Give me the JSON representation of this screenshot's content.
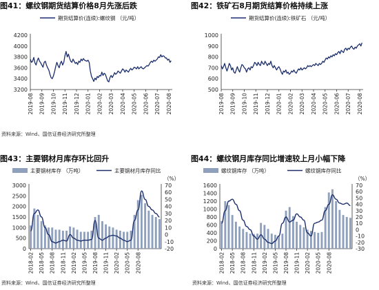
{
  "panels": [
    {
      "title": "图41：螺纹钢期货结算价格8月先涨后跌",
      "source": "资料来源：Wind、国信证券经济研究所整理",
      "chart_data": {
        "type": "line",
        "legend": [
          "期货结算价(连续):螺纹钢 （元/吨）"
        ],
        "legend_position": "top",
        "ylim": [
          3200,
          4200
        ],
        "yticks": [
          "3200",
          "3400",
          "3600",
          "3800",
          "4000",
          "4200"
        ],
        "xticks": [
          "2019-08",
          "2019-09",
          "2019-10",
          "2019-11",
          "2019-12",
          "2020-01",
          "2020-02",
          "2020-03",
          "2020-04",
          "2020-05",
          "2020-06",
          "2020-07",
          "2020-08"
        ],
        "x_range": [
          0,
          12.3
        ],
        "color": "#1b2d6b",
        "series": [
          {
            "x": [
              0,
              0.1,
              0.2,
              0.3,
              0.4,
              0.5,
              0.6,
              0.7,
              0.8,
              0.9,
              1.0,
              1.1,
              1.2,
              1.3,
              1.4,
              1.5,
              1.6,
              1.7,
              1.8,
              1.9,
              2.0,
              2.1,
              2.2,
              2.3,
              2.4,
              2.5,
              2.6,
              2.7,
              2.8,
              2.9,
              3.0,
              3.1,
              3.2,
              3.3,
              3.4,
              3.5,
              3.6,
              3.7,
              3.8,
              3.9,
              4.0,
              4.1,
              4.2,
              4.3,
              4.4,
              4.5,
              4.6,
              4.7,
              4.8,
              4.9,
              5.0,
              5.1,
              5.2,
              5.3,
              5.4,
              5.5,
              5.6,
              5.7,
              5.8,
              5.9,
              6.0,
              6.1,
              6.2,
              6.3,
              6.4,
              6.5,
              6.6,
              6.7,
              6.8,
              6.9,
              7.0,
              7.1,
              7.2,
              7.3,
              7.4,
              7.5,
              7.6,
              7.7,
              7.8,
              7.9,
              8.0,
              8.1,
              8.2,
              8.3,
              8.4,
              8.5,
              8.6,
              8.7,
              8.8,
              8.9,
              9.0,
              9.1,
              9.2,
              9.3,
              9.4,
              9.5,
              9.6,
              9.7,
              9.8,
              9.9,
              10.0,
              10.1,
              10.2,
              10.3,
              10.4,
              10.5,
              10.6,
              10.7,
              10.8,
              10.9,
              11.0,
              11.1,
              11.2,
              11.3,
              11.4,
              11.5,
              11.6,
              11.7,
              11.8,
              11.9,
              12.0,
              12.1,
              12.2
            ],
            "y": [
              3760,
              3700,
              3720,
              3790,
              3690,
              3650,
              3730,
              3780,
              3720,
              3690,
              3650,
              3610,
              3700,
              3720,
              3650,
              3600,
              3560,
              3480,
              3420,
              3400,
              3450,
              3530,
              3620,
              3700,
              3640,
              3600,
              3680,
              3720,
              3650,
              3700,
              3820,
              3900,
              3800,
              3850,
              3780,
              3720,
              3700,
              3760,
              3720,
              3680,
              3700,
              3660,
              3720,
              3700,
              3760,
              3730,
              3770,
              3740,
              3730,
              3720,
              3740,
              3700,
              3540,
              3440,
              3400,
              3350,
              3410,
              3380,
              3440,
              3420,
              3460,
              3450,
              3520,
              3460,
              3500,
              3480,
              3420,
              3360,
              3340,
              3420,
              3460,
              3420,
              3460,
              3510,
              3480,
              3500,
              3540,
              3520,
              3500,
              3540,
              3580,
              3560,
              3520,
              3560,
              3540,
              3520,
              3560,
              3590,
              3560,
              3580,
              3610,
              3600,
              3580,
              3620,
              3580,
              3600,
              3620,
              3590,
              3580,
              3600,
              3620,
              3640,
              3630,
              3660,
              3700,
              3720,
              3700,
              3740,
              3720,
              3740,
              3760,
              3800,
              3790,
              3840,
              3800,
              3820,
              3810,
              3780,
              3780,
              3740,
              3760,
              3700,
              3730
            ]
          }
        ]
      }
    },
    {
      "title": "图42：铁矿石8月期货结算价格持续上涨",
      "source": "",
      "chart_data": {
        "type": "line",
        "legend": [
          "期货结算价(连续):铁矿石 （元/吨）"
        ],
        "legend_position": "top",
        "ylim": [
          500,
          1000
        ],
        "yticks": [
          "500",
          "600",
          "700",
          "800",
          "900",
          "1000"
        ],
        "xticks": [
          "2019-08",
          "2019-09",
          "2019-10",
          "2019-11",
          "2019-12",
          "2020-01",
          "2020-02",
          "2020-03",
          "2020-04",
          "2020-05",
          "2020-06",
          "2020-07",
          "2020-08"
        ],
        "x_range": [
          0,
          12.3
        ],
        "color": "#1b2d6b",
        "series": [
          {
            "x": [
              0,
              0.1,
              0.2,
              0.3,
              0.4,
              0.5,
              0.6,
              0.7,
              0.8,
              0.9,
              1.0,
              1.1,
              1.2,
              1.3,
              1.4,
              1.5,
              1.6,
              1.7,
              1.8,
              1.9,
              2.0,
              2.1,
              2.2,
              2.3,
              2.4,
              2.5,
              2.6,
              2.7,
              2.8,
              2.9,
              3.0,
              3.1,
              3.2,
              3.3,
              3.4,
              3.5,
              3.6,
              3.7,
              3.8,
              3.9,
              4.0,
              4.1,
              4.2,
              4.3,
              4.4,
              4.5,
              4.6,
              4.7,
              4.8,
              4.9,
              5.0,
              5.1,
              5.2,
              5.3,
              5.4,
              5.5,
              5.6,
              5.7,
              5.8,
              5.9,
              6.0,
              6.1,
              6.2,
              6.3,
              6.4,
              6.5,
              6.6,
              6.7,
              6.8,
              6.9,
              7.0,
              7.1,
              7.2,
              7.3,
              7.4,
              7.5,
              7.6,
              7.7,
              7.8,
              7.9,
              8.0,
              8.1,
              8.2,
              8.3,
              8.4,
              8.5,
              8.6,
              8.7,
              8.8,
              8.9,
              9.0,
              9.1,
              9.2,
              9.3,
              9.4,
              9.5,
              9.6,
              9.7,
              9.8,
              9.9,
              10.0,
              10.1,
              10.2,
              10.3,
              10.4,
              10.5,
              10.6,
              10.7,
              10.8,
              10.9,
              11.0,
              11.1,
              11.2,
              11.3,
              11.4,
              11.5,
              11.6,
              11.7,
              11.8,
              11.9,
              12.0,
              12.1,
              12.2
            ],
            "y": [
              720,
              690,
              710,
              740,
              700,
              670,
              700,
              740,
              720,
              680,
              700,
              660,
              650,
              680,
              710,
              680,
              660,
              700,
              730,
              720,
              700,
              690,
              660,
              690,
              700,
              680,
              710,
              700,
              720,
              750,
              740,
              720,
              750,
              730,
              720,
              760,
              740,
              730,
              760,
              740,
              720,
              740,
              730,
              760,
              720,
              700,
              720,
              700,
              680,
              700,
              710,
              690,
              660,
              640,
              670,
              660,
              680,
              650,
              660,
              640,
              650,
              670,
              660,
              680,
              660,
              650,
              670,
              690,
              680,
              700,
              680,
              690,
              700,
              690,
              700,
              720,
              710,
              720,
              710,
              720,
              730,
              720,
              740,
              730,
              720,
              740,
              730,
              740,
              760,
              750,
              770,
              790,
              780,
              800,
              790,
              810,
              800,
              820,
              810,
              830,
              820,
              840,
              850,
              830,
              860,
              850,
              840,
              870,
              880,
              860,
              880,
              870,
              890,
              900,
              880,
              870,
              890,
              880,
              900,
              910,
              920,
              900,
              930
            ]
          }
        ]
      }
    },
    {
      "title": "图43：主要钢材月库存环比回升",
      "source": "资料来源：Wind、国信证券经济研究所整理",
      "chart_data": {
        "type": "bar",
        "legend": [
          "主要钢材库存 （万吨）",
          "主要钢材月库存同比"
        ],
        "legend_position": "top",
        "ylim": [
          0,
          3000
        ],
        "yticks": [
          "0",
          "500",
          "1000",
          "1500",
          "2000",
          "2500",
          "3000"
        ],
        "y2lim": [
          -20,
          70
        ],
        "y2ticks": [
          "-20",
          "-10",
          "0",
          "10",
          "20",
          "30",
          "40",
          "50",
          "60",
          "70"
        ],
        "y2unit": "（%）",
        "xticks": [
          "2018-02",
          "2018-05",
          "2018-08",
          "2018-11",
          "2019-02",
          "2019-05",
          "2019-08",
          "2019-11",
          "2020-02",
          "2020-05",
          "2020-08"
        ],
        "bar_color": "#8fa0bd",
        "line_color": "#1b2d6b",
        "series": [
          {
            "name": "主要钢材库存 （万吨）",
            "values": [
              1100,
              1900,
              1600,
              1300,
              1100,
              1000,
              1000,
              900,
              900,
              850,
              850,
              1050,
              1000,
              900,
              800,
              800,
              800,
              850,
              1500,
              1600,
              1300,
              1150,
              1050,
              1000,
              900,
              850,
              800,
              800,
              850,
              1600,
              2300,
              2550,
              2150,
              1800,
              1600,
              1500,
              1400
            ]
          },
          {
            "name": "主要钢材月库存同比",
            "values": [
              5,
              30,
              35,
              25,
              10,
              0,
              -10,
              -12,
              -10,
              -8,
              -9,
              0,
              -5,
              -8,
              -9,
              -8,
              -8,
              -7,
              20,
              -5,
              -8,
              -5,
              -2,
              -1,
              -2,
              -5,
              -8,
              -10,
              -8,
              20,
              35,
              62,
              50,
              40,
              35,
              30,
              25
            ]
          }
        ]
      }
    },
    {
      "title": "图44：螺纹钢月库存同比增速较上月小幅下降",
      "source": "资料来源：Wind、国信证券经济研究所整理",
      "chart_data": {
        "type": "bar",
        "legend": [
          "螺纹钢库存 （万吨）",
          "螺纹钢库存同比"
        ],
        "legend_position": "top",
        "ylim": [
          0,
          1600
        ],
        "yticks": [
          "0",
          "200",
          "400",
          "600",
          "800",
          "1000",
          "1200",
          "1400",
          "1600"
        ],
        "y2lim": [
          -30,
          70
        ],
        "y2ticks": [
          "-30",
          "-20",
          "-10",
          "0",
          "10",
          "20",
          "30",
          "40",
          "50",
          "60",
          "70"
        ],
        "y2unit": "（%）",
        "xticks": [
          "2018-02",
          "2018-05",
          "2018-08",
          "2018-11",
          "2019-02",
          "2019-05",
          "2019-08",
          "2019-11",
          "2020-02",
          "2020-05",
          "2020-08"
        ],
        "bar_color": "#8fa0bd",
        "line_color": "#1b2d6b",
        "series": [
          {
            "name": "螺纹钢库存 （万吨）",
            "values": [
              700,
              1200,
              1100,
              850,
              680,
              560,
              500,
              420,
              380,
              370,
              380,
              650,
              600,
              500,
              380,
              350,
              330,
              380,
              960,
              1050,
              820,
              680,
              600,
              540,
              480,
              450,
              420,
              400,
              420,
              1050,
              1420,
              1500,
              1200,
              980,
              850,
              800,
              780
            ]
          },
          {
            "name": "螺纹钢库存同比",
            "values": [
              10,
              30,
              45,
              48,
              40,
              30,
              15,
              5,
              0,
              -10,
              -15,
              -8,
              -15,
              -20,
              -22,
              -18,
              -10,
              10,
              20,
              12,
              15,
              25,
              20,
              15,
              -5,
              -10,
              10,
              12,
              15,
              30,
              40,
              55,
              48,
              42,
              40,
              42,
              38
            ]
          }
        ]
      }
    }
  ]
}
